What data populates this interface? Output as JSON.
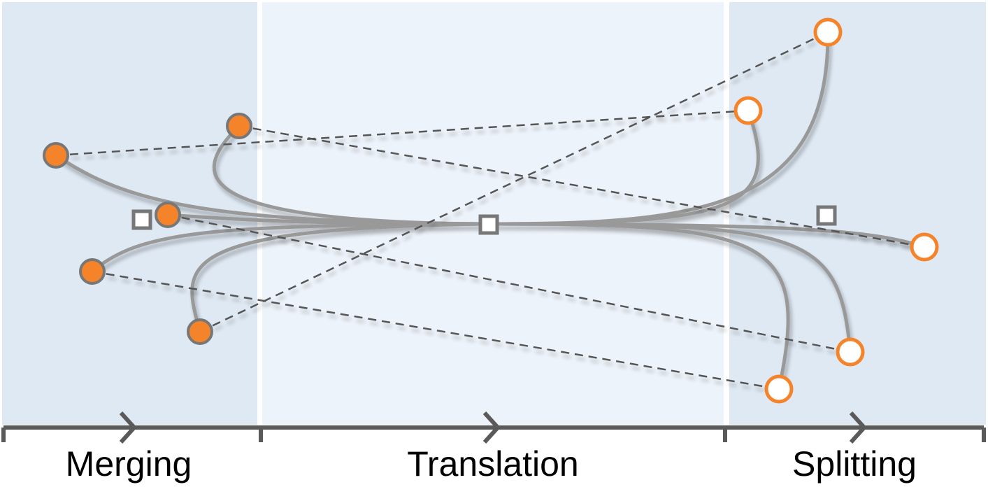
{
  "phases": [
    {
      "id": "merging",
      "label": "Merging"
    },
    {
      "id": "translation",
      "label": "Translation"
    },
    {
      "id": "splitting",
      "label": "Splitting"
    }
  ],
  "colors": {
    "phase_merging_bg": "#dfe9f3",
    "phase_translation_bg": "#edf3fa",
    "phase_splitting_bg": "#dfe9f3",
    "trajectory": "#999999",
    "dashed_link": "#555555",
    "source_point": "#f5832a",
    "target_point": "#f5832a",
    "marker_square": "#777777",
    "axis": "#5a5a5a"
  },
  "icons": {
    "source": "filled-circle",
    "target": "hollow-circle",
    "center_marker": "hollow-square",
    "direction": "chevron-right"
  }
}
